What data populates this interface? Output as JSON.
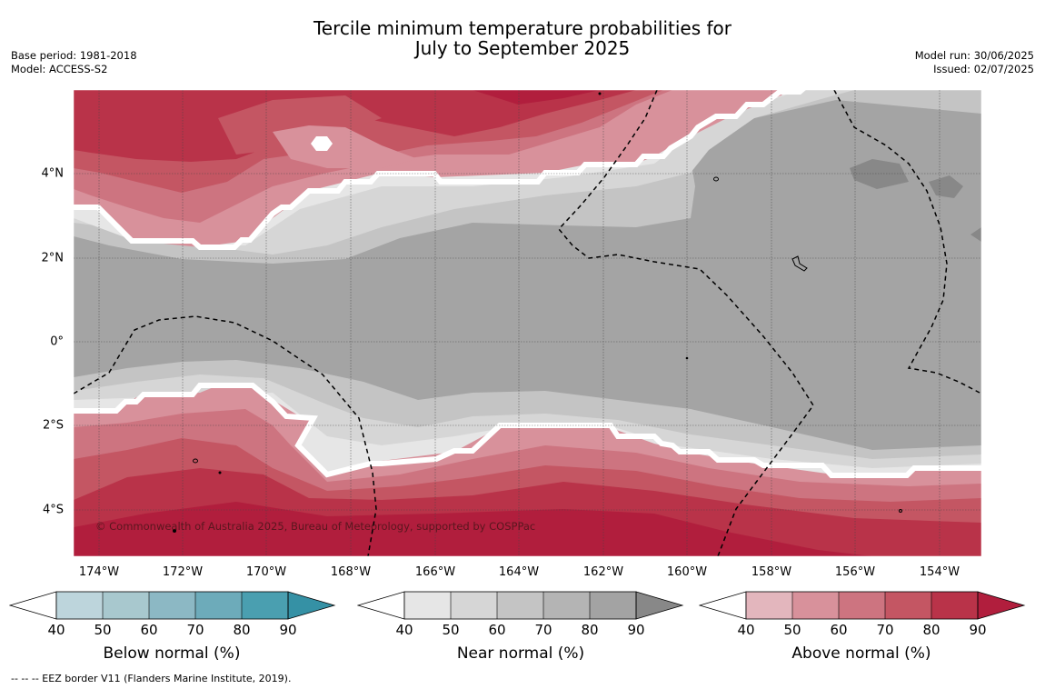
{
  "title_line1": "Tercile minimum temperature probabilities for",
  "title_line2": "July to September 2025",
  "base_period": "Base period: 1981-2018",
  "model": "Model: ACCESS-S2",
  "model_run": "Model run: 30/06/2025",
  "issued": "Issued: 02/07/2025",
  "copyright": "© Commonwealth of Australia 2025, Bureau of Meteorology, supported by COSPPac",
  "footer": "--  --  -- EEZ border V11 (Flanders Marine Institute, 2019).",
  "lon_labels": [
    "174°W",
    "172°W",
    "170°W",
    "168°W",
    "166°W",
    "164°W",
    "162°W",
    "160°W",
    "158°W",
    "156°W",
    "154°W"
  ],
  "lat_labels": [
    "4°N",
    "2°N",
    "0°",
    "2°S",
    "4°S"
  ],
  "colorbars": [
    {
      "title": "Below normal (%)",
      "ticks": [
        "40",
        "50",
        "60",
        "70",
        "80",
        "90"
      ],
      "colors": [
        "#ffffff",
        "#bdd5dc",
        "#a8c8ce",
        "#8cb8c4",
        "#6dabba",
        "#4a9fb0",
        "#3591a5"
      ]
    },
    {
      "title": "Near normal (%)",
      "ticks": [
        "40",
        "50",
        "60",
        "70",
        "80",
        "90"
      ],
      "colors": [
        "#ffffff",
        "#e6e6e6",
        "#d6d6d6",
        "#c4c4c4",
        "#b4b4b4",
        "#a3a3a3",
        "#888888"
      ]
    },
    {
      "title": "Above normal (%)",
      "ticks": [
        "40",
        "50",
        "60",
        "70",
        "80",
        "90"
      ],
      "colors": [
        "#ffffff",
        "#e3b6bd",
        "#d8919b",
        "#cd7480",
        "#c45663",
        "#b93349",
        "#b11e3d"
      ]
    }
  ]
}
